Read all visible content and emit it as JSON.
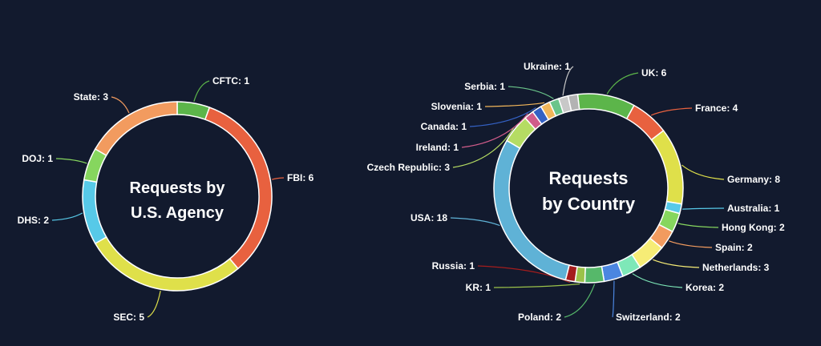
{
  "chart_data": [
    {
      "type": "pie",
      "title_lines": [
        "Requests by",
        "U.S. Agency"
      ],
      "categories": [
        "CFTC",
        "FBI",
        "SEC",
        "DHS",
        "DOJ",
        "State"
      ],
      "values": [
        1,
        6,
        5,
        2,
        1,
        3
      ],
      "colors": [
        "#5cb54a",
        "#e8613f",
        "#dfe04a",
        "#57c9e8",
        "#86d65e",
        "#f29b5f"
      ],
      "labels": [
        "CFTC: 1",
        "FBI: 6",
        "SEC: 5",
        "DHS: 2",
        "DOJ: 1",
        "State: 3"
      ]
    },
    {
      "type": "pie",
      "title_lines": [
        "Requests",
        "by Country"
      ],
      "categories": [
        "UK",
        "France",
        "Germany",
        "Australia",
        "Hong Kong",
        "Spain",
        "Netherlands",
        "Korea",
        "Switzerland",
        "Poland",
        "KR",
        "Russia",
        "USA",
        "Czech Republic",
        "Ireland",
        "Canada",
        "Slovenia",
        "Serbia",
        "Ukraine",
        "(unlabeled)"
      ],
      "values": [
        6,
        4,
        8,
        1,
        2,
        2,
        3,
        2,
        2,
        2,
        1,
        1,
        18,
        3,
        1,
        1,
        1,
        1,
        1,
        1
      ],
      "colors": [
        "#5cb54a",
        "#e8613f",
        "#dfe04a",
        "#57c9e8",
        "#86d65e",
        "#f29b5f",
        "#f6ec76",
        "#7ee8b8",
        "#4b86e0",
        "#56b86a",
        "#9bc24a",
        "#a51d1d",
        "#5fb2d6",
        "#b5dc63",
        "#d05c8a",
        "#3461c4",
        "#f2b65a",
        "#6ac48a",
        "#c8c8c8",
        "#b3b3b3"
      ],
      "labels": [
        "UK: 6",
        "France: 4",
        "Germany: 8",
        "Australia: 1",
        "Hong Kong: 2",
        "Spain: 2",
        "Netherlands: 3",
        "Korea: 2",
        "Switzerland: 2",
        "Poland: 2",
        "KR: 1",
        "Russia: 1",
        "USA: 18",
        "Czech Republic: 3",
        "Ireland: 1",
        "Canada: 1",
        "Slovenia: 1",
        "Serbia: 1",
        "Ukraine: 1",
        ""
      ]
    }
  ]
}
